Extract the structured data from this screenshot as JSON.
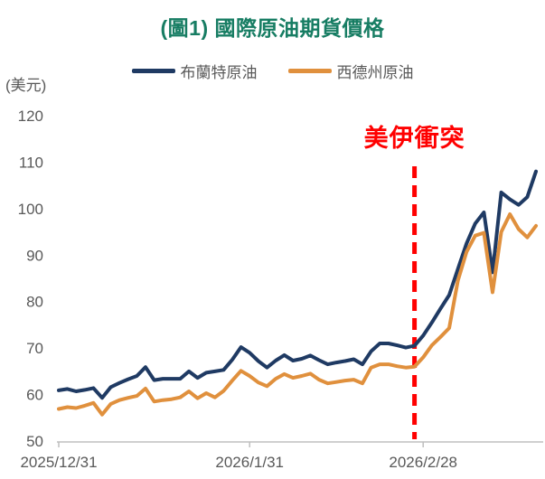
{
  "title": "(圖1) 國際原油期貨價格",
  "y_axis_unit": "(美元)",
  "annotation": {
    "label": "美伊衝突",
    "day_index": 41
  },
  "colors": {
    "title": "#177d63",
    "brent": "#1f3a63",
    "wti": "#e0903d",
    "annotation_red": "#ff0000",
    "axis_line": "#bfbfbf",
    "tick_text": "#595959"
  },
  "legend": {
    "items": [
      {
        "label": "布蘭特原油"
      },
      {
        "label": "西德州原油"
      }
    ]
  },
  "chart_data": {
    "type": "line",
    "title": "(圖1) 國際原油期貨價格",
    "ylabel": "(美元)",
    "ylim": [
      50,
      120
    ],
    "y_ticks": [
      120,
      110,
      100,
      90,
      80,
      70,
      60,
      50
    ],
    "x_tick_labels": [
      "2025/12/31",
      "2026/1/31",
      "2026/2/28"
    ],
    "x_tick_day_index": [
      0,
      22,
      42
    ],
    "grid": false,
    "legend_position": "top",
    "annotation": {
      "label": "美伊衝突",
      "day_index": 41
    },
    "series": [
      {
        "name": "布蘭特原油",
        "key": "brent-line",
        "color": "#1f3a63",
        "values": [
          60.9,
          61.2,
          60.7,
          61.0,
          61.4,
          59.3,
          61.6,
          62.5,
          63.3,
          64.0,
          65.9,
          63.1,
          63.4,
          63.4,
          63.4,
          65.0,
          63.6,
          64.7,
          65.0,
          65.3,
          67.5,
          70.2,
          69.0,
          67.2,
          65.8,
          67.3,
          68.5,
          67.3,
          67.7,
          68.4,
          67.4,
          66.5,
          66.9,
          67.2,
          67.6,
          66.5,
          69.3,
          71.0,
          71.0,
          70.6,
          70.1,
          70.5,
          72.7,
          75.5,
          78.5,
          81.4,
          87.0,
          92.5,
          96.8,
          99.2,
          86.3,
          103.5,
          102.0,
          100.8,
          102.5,
          108.0
        ]
      },
      {
        "name": "西德州原油",
        "key": "wti-line",
        "color": "#e0903d",
        "values": [
          56.9,
          57.3,
          57.1,
          57.6,
          58.2,
          55.7,
          58.0,
          58.8,
          59.3,
          59.7,
          61.3,
          58.5,
          58.8,
          59.0,
          59.4,
          60.7,
          59.2,
          60.3,
          59.4,
          60.8,
          63.0,
          65.1,
          64.0,
          62.6,
          61.8,
          63.4,
          64.4,
          63.6,
          64.0,
          64.5,
          63.2,
          62.4,
          62.7,
          63.0,
          63.2,
          62.4,
          65.8,
          66.5,
          66.5,
          66.1,
          65.8,
          66.0,
          68.0,
          70.6,
          72.4,
          74.3,
          84.5,
          90.7,
          94.2,
          94.8,
          82.0,
          95.0,
          98.8,
          95.6,
          93.8,
          96.3
        ]
      }
    ]
  }
}
